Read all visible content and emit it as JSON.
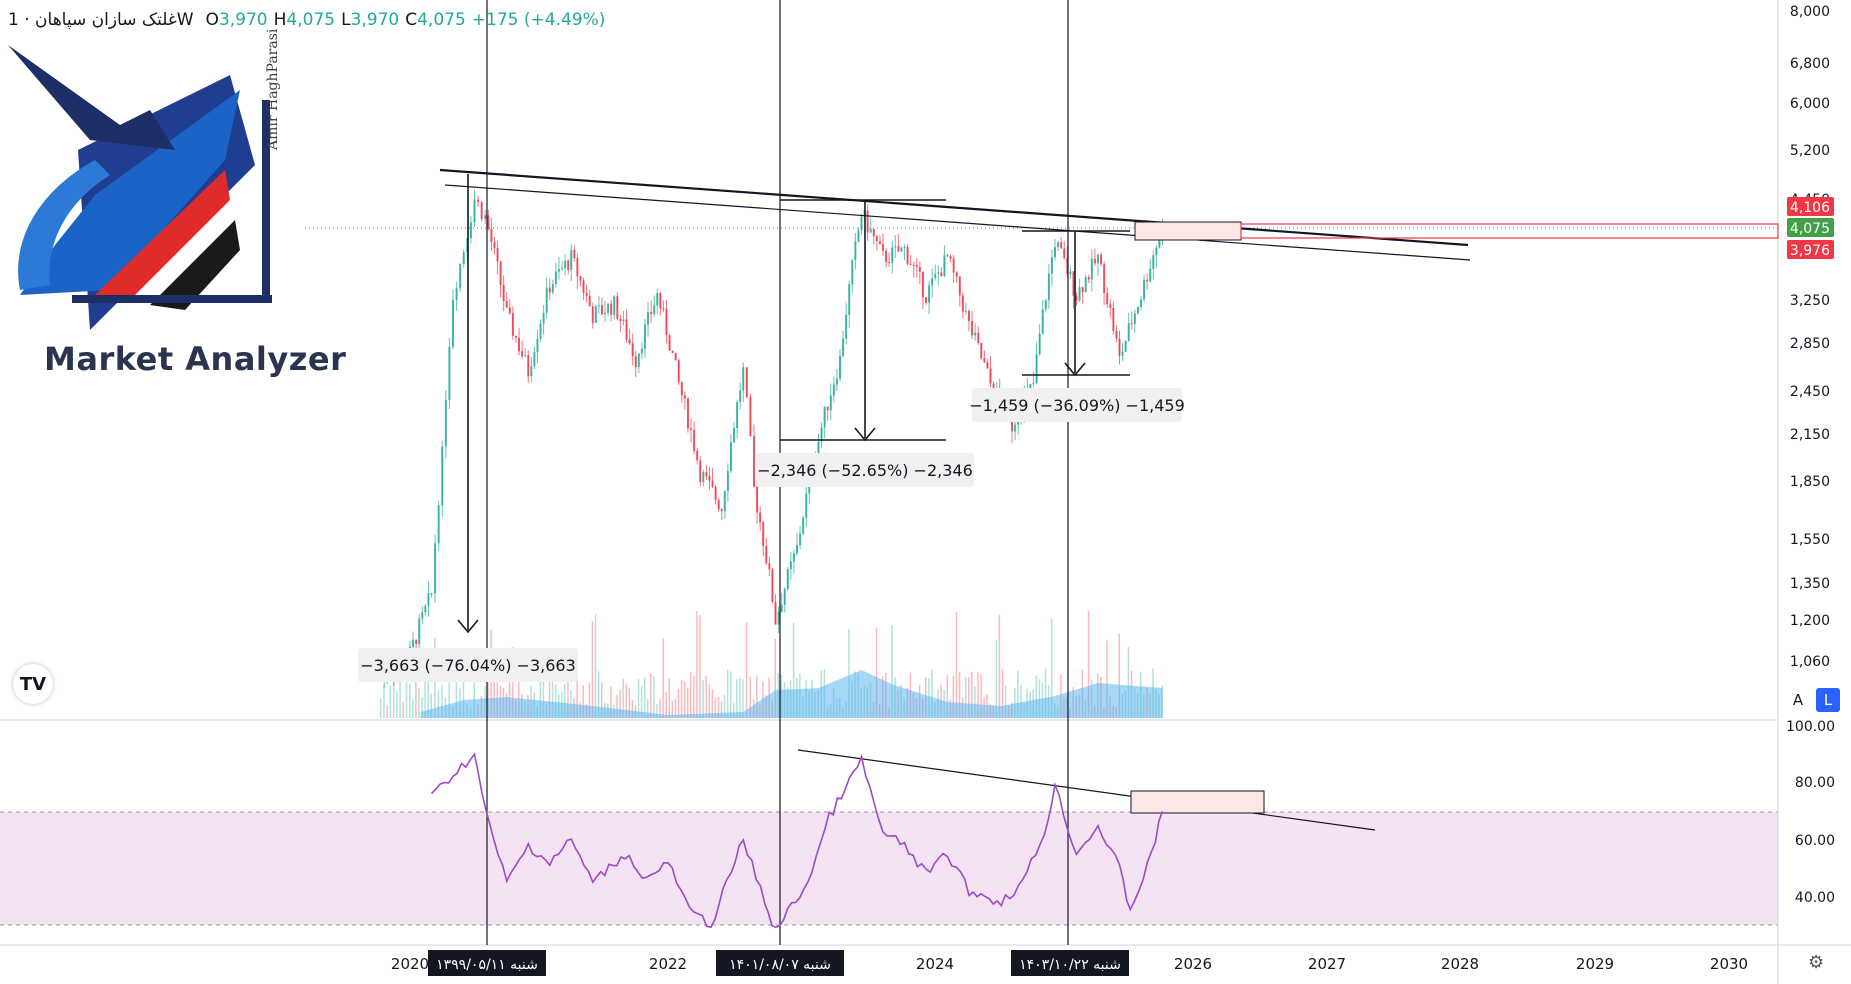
{
  "header": {
    "symbol_title": "غلتک سازان سپاهان · 1W",
    "o_label": "O",
    "o_value": "3,970",
    "h_label": "H",
    "h_value": "4,075",
    "l_label": "L",
    "l_value": "3,970",
    "c_label": "C",
    "c_value": "4,075",
    "change": "+175 (+4.49%)"
  },
  "watermark": {
    "brand": "Market Analyzer",
    "signature": "Amir HaghParasi"
  },
  "tv_badge": "TV",
  "scale_buttons": {
    "auto": "A",
    "log": "L"
  },
  "colors": {
    "up": "#22ab94",
    "down": "#f23645",
    "volume": "#5cb7f0",
    "rsi_line": "#9c4bc4",
    "rsi_band": "#f3e3f3",
    "price_tag": "#f23645",
    "last_price_tag": "#43a047"
  },
  "chart_data": {
    "type": "line",
    "price_axis": {
      "scale": "log",
      "ticks": [
        "8,000",
        "6,800",
        "6,000",
        "5,200",
        "4,450",
        "3,250",
        "2,850",
        "2,450",
        "2,150",
        "1,850",
        "1,550",
        "1,350",
        "1,200",
        "1,060"
      ],
      "tags": [
        {
          "label": "4,106",
          "color": "#f23645"
        },
        {
          "label": "4,075",
          "color": "#43a047"
        },
        {
          "label": "3,976",
          "color": "#f23645"
        }
      ]
    },
    "rsi_axis": {
      "ticks": [
        "100.00",
        "80.00",
        "60.00",
        "40.00"
      ],
      "band": [
        30,
        70
      ]
    },
    "x_axis": {
      "ticks": [
        "2020",
        "2022",
        "2024",
        "2026",
        "2027",
        "2028",
        "2029",
        "2030"
      ],
      "markers": [
        "شنبه ۱۳۹۹/۰۵/۱۱",
        "شنبه ۱۴۰۱/۰۸/۰۷",
        "شنبه ۱۴۰۳/۱۰/۲۲"
      ]
    },
    "price_series": [
      {
        "x": "2019-10",
        "y": 1000
      },
      {
        "x": "2020-01",
        "y": 1080
      },
      {
        "x": "2020-03",
        "y": 1300
      },
      {
        "x": "2020-04",
        "y": 2000
      },
      {
        "x": "2020-05",
        "y": 3300
      },
      {
        "x": "2020-06",
        "y": 3800
      },
      {
        "x": "2020-07",
        "y": 4450
      },
      {
        "x": "2020-08",
        "y": 4200
      },
      {
        "x": "2020-10",
        "y": 3100
      },
      {
        "x": "2020-12",
        "y": 2600
      },
      {
        "x": "2021-02",
        "y": 3400
      },
      {
        "x": "2021-04",
        "y": 3700
      },
      {
        "x": "2021-06",
        "y": 3100
      },
      {
        "x": "2021-08",
        "y": 3200
      },
      {
        "x": "2021-10",
        "y": 2700
      },
      {
        "x": "2021-12",
        "y": 3300
      },
      {
        "x": "2022-02",
        "y": 2500
      },
      {
        "x": "2022-04",
        "y": 1900
      },
      {
        "x": "2022-06",
        "y": 1700
      },
      {
        "x": "2022-08",
        "y": 2600
      },
      {
        "x": "2022-09",
        "y": 1800
      },
      {
        "x": "2022-11",
        "y": 1200
      },
      {
        "x": "2023-01",
        "y": 1500
      },
      {
        "x": "2023-03",
        "y": 2100
      },
      {
        "x": "2023-05",
        "y": 2700
      },
      {
        "x": "2023-07",
        "y": 4250
      },
      {
        "x": "2023-09",
        "y": 3700
      },
      {
        "x": "2023-11",
        "y": 3800
      },
      {
        "x": "2024-01",
        "y": 3300
      },
      {
        "x": "2024-03",
        "y": 3700
      },
      {
        "x": "2024-05",
        "y": 3000
      },
      {
        "x": "2024-07",
        "y": 2500
      },
      {
        "x": "2024-09",
        "y": 2200
      },
      {
        "x": "2024-11",
        "y": 2500
      },
      {
        "x": "2025-01",
        "y": 3900
      },
      {
        "x": "2025-03",
        "y": 3300
      },
      {
        "x": "2025-05",
        "y": 3700
      },
      {
        "x": "2025-07",
        "y": 2700
      },
      {
        "x": "2025-09",
        "y": 3300
      },
      {
        "x": "2025-11",
        "y": 4075
      }
    ],
    "rsi_series": [
      {
        "x": "2020-03",
        "y": 75
      },
      {
        "x": "2020-05",
        "y": 83
      },
      {
        "x": "2020-07",
        "y": 90
      },
      {
        "x": "2020-08",
        "y": 70
      },
      {
        "x": "2020-10",
        "y": 45
      },
      {
        "x": "2020-12",
        "y": 58
      },
      {
        "x": "2021-02",
        "y": 52
      },
      {
        "x": "2021-04",
        "y": 60
      },
      {
        "x": "2021-06",
        "y": 45
      },
      {
        "x": "2021-09",
        "y": 55
      },
      {
        "x": "2021-11",
        "y": 46
      },
      {
        "x": "2022-01",
        "y": 52
      },
      {
        "x": "2022-03",
        "y": 35
      },
      {
        "x": "2022-05",
        "y": 30
      },
      {
        "x": "2022-08",
        "y": 60
      },
      {
        "x": "2022-10",
        "y": 38
      },
      {
        "x": "2022-11",
        "y": 28
      },
      {
        "x": "2023-02",
        "y": 45
      },
      {
        "x": "2023-04",
        "y": 68
      },
      {
        "x": "2023-07",
        "y": 88
      },
      {
        "x": "2023-09",
        "y": 62
      },
      {
        "x": "2023-11",
        "y": 58
      },
      {
        "x": "2024-01",
        "y": 48
      },
      {
        "x": "2024-03",
        "y": 55
      },
      {
        "x": "2024-05",
        "y": 42
      },
      {
        "x": "2024-08",
        "y": 38
      },
      {
        "x": "2024-10",
        "y": 45
      },
      {
        "x": "2024-12",
        "y": 62
      },
      {
        "x": "2025-01",
        "y": 79
      },
      {
        "x": "2025-03",
        "y": 55
      },
      {
        "x": "2025-05",
        "y": 65
      },
      {
        "x": "2025-07",
        "y": 50
      },
      {
        "x": "2025-08",
        "y": 35
      },
      {
        "x": "2025-10",
        "y": 55
      },
      {
        "x": "2025-11",
        "y": 70
      }
    ],
    "measurements": [
      {
        "label": "−3,663 (−76.04%) −3,663"
      },
      {
        "label": "−2,346 (−52.65%) −2,346"
      },
      {
        "label": "−1,459 (−36.09%) −1,459"
      }
    ],
    "grid": false
  }
}
